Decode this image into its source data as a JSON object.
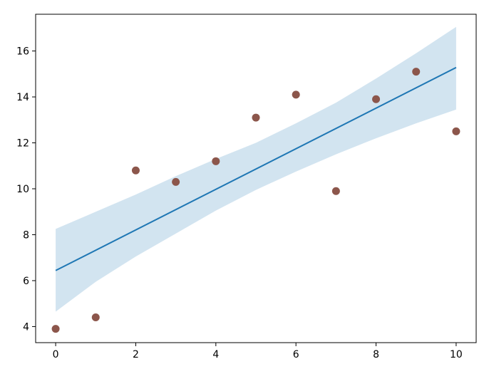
{
  "chart_data": {
    "type": "scatter",
    "title": "",
    "xlabel": "",
    "ylabel": "",
    "xlim": [
      -0.5,
      10.5
    ],
    "ylim": [
      3.3,
      17.6
    ],
    "grid": false,
    "x_ticks": [
      {
        "value": 0,
        "label": "0"
      },
      {
        "value": 2,
        "label": "2"
      },
      {
        "value": 4,
        "label": "4"
      },
      {
        "value": 6,
        "label": "6"
      },
      {
        "value": 8,
        "label": "8"
      },
      {
        "value": 10,
        "label": "10"
      }
    ],
    "y_ticks": [
      {
        "value": 4,
        "label": "4"
      },
      {
        "value": 6,
        "label": "6"
      },
      {
        "value": 8,
        "label": "8"
      },
      {
        "value": 10,
        "label": "10"
      },
      {
        "value": 12,
        "label": "12"
      },
      {
        "value": 14,
        "label": "14"
      },
      {
        "value": 16,
        "label": "16"
      }
    ],
    "points": {
      "x": [
        0,
        1,
        2,
        3,
        4,
        5,
        6,
        7,
        8,
        9,
        10
      ],
      "y": [
        3.9,
        4.4,
        10.8,
        10.3,
        11.2,
        13.1,
        14.1,
        9.9,
        13.9,
        15.1,
        12.5
      ],
      "color": "#8c564b"
    },
    "fit_line": {
      "x": [
        0,
        10
      ],
      "y": [
        6.44,
        15.28
      ],
      "color": "#1f77b4"
    },
    "confidence_band": {
      "x": [
        0,
        1,
        2,
        3,
        4,
        5,
        6,
        7,
        8,
        9,
        10
      ],
      "lower": [
        4.65,
        5.95,
        7.05,
        8.05,
        9.05,
        9.95,
        10.75,
        11.5,
        12.2,
        12.85,
        13.45
      ],
      "upper": [
        8.25,
        9.0,
        9.75,
        10.55,
        11.3,
        12.0,
        12.85,
        13.75,
        14.8,
        15.9,
        17.05
      ],
      "color": "#1f77b4",
      "opacity": 0.2
    }
  }
}
